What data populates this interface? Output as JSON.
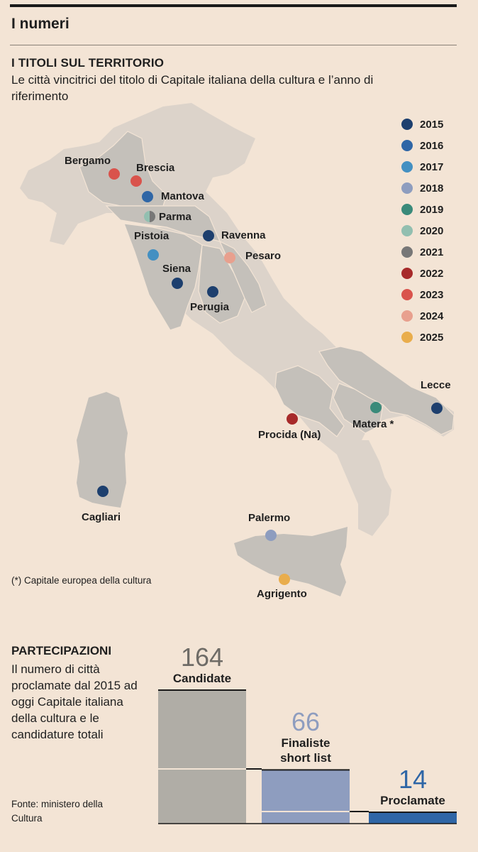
{
  "header": {
    "title": "I numeri"
  },
  "map_section": {
    "title": "I TITOLI SUL TERRITORIO",
    "subtitle": "Le città vincitrici del titolo di Capitale italiana della cultura e l’anno di riferimento",
    "note": "(*) Capitale europea della cultura"
  },
  "legend": [
    {
      "year": "2015",
      "color": "#1d3f6e"
    },
    {
      "year": "2016",
      "color": "#2f66a6"
    },
    {
      "year": "2017",
      "color": "#4490c2"
    },
    {
      "year": "2018",
      "color": "#8e9dbf"
    },
    {
      "year": "2019",
      "color": "#3a8a7a"
    },
    {
      "year": "2020",
      "color": "#92bfb0"
    },
    {
      "year": "2021",
      "color": "#777777"
    },
    {
      "year": "2022",
      "color": "#a72a2a"
    },
    {
      "year": "2023",
      "color": "#d9534c"
    },
    {
      "year": "2024",
      "color": "#e8a08e"
    },
    {
      "year": "2025",
      "color": "#e9ad4c"
    }
  ],
  "cities": [
    {
      "name": "Bergamo",
      "year": "2023"
    },
    {
      "name": "Brescia",
      "year": "2023"
    },
    {
      "name": "Mantova",
      "year": "2016"
    },
    {
      "name": "Parma",
      "year": "2020–2021"
    },
    {
      "name": "Pistoia",
      "year": "2017"
    },
    {
      "name": "Ravenna",
      "year": "2015"
    },
    {
      "name": "Pesaro",
      "year": "2024"
    },
    {
      "name": "Siena",
      "year": "2015"
    },
    {
      "name": "Perugia",
      "year": "2015"
    },
    {
      "name": "Lecce",
      "year": "2015"
    },
    {
      "name": "Matera *",
      "year": "2019"
    },
    {
      "name": "Procida (Na)",
      "year": "2022"
    },
    {
      "name": "Cagliari",
      "year": "2015"
    },
    {
      "name": "Palermo",
      "year": "2018"
    },
    {
      "name": "Agrigento",
      "year": "2025"
    }
  ],
  "participation": {
    "title": "PARTECIPAZIONI",
    "subtitle": "Il numero di città proclamate dal 2015 ad oggi Capitale italiana della cultura e le candidature totali",
    "source": "Fonte: ministero della Cultura"
  },
  "chart_data": {
    "type": "bar",
    "categories": [
      "Candidate",
      "Finaliste short list",
      "Proclamate"
    ],
    "values": [
      164,
      66,
      14
    ],
    "colors": [
      "#b0ada6",
      "#8e9dbf",
      "#2f66a6"
    ]
  }
}
